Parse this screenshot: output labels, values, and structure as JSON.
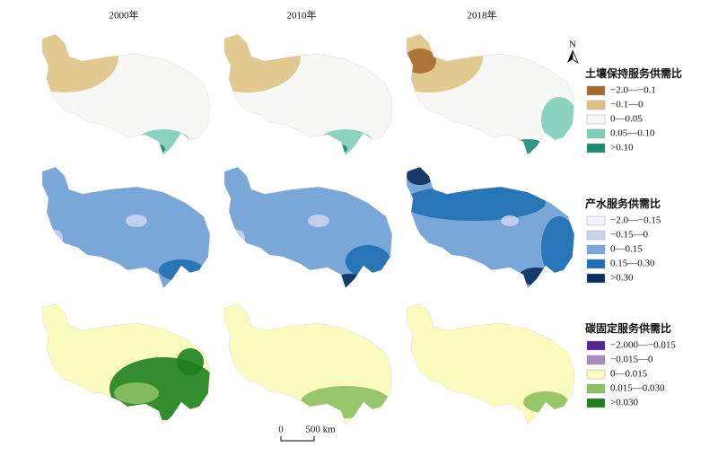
{
  "columns": [
    "2000年",
    "2010年",
    "2018年"
  ],
  "north": "N",
  "legends": [
    {
      "title": "土壤保持服务供需比",
      "items": [
        {
          "label": "−2.0—−0.1",
          "color": "#a8692f"
        },
        {
          "label": "−0.1—0",
          "color": "#dfc385"
        },
        {
          "label": "0—0.05",
          "color": "#f7f7f5"
        },
        {
          "label": "0.05—0.10",
          "color": "#7fcdbb"
        },
        {
          "label": ">0.10",
          "color": "#1a8a74"
        }
      ]
    },
    {
      "title": "产水服务供需比",
      "items": [
        {
          "label": "−2.0—−0.15",
          "color": "#f4f2fa"
        },
        {
          "label": "−0.15—0",
          "color": "#c9d3ee"
        },
        {
          "label": "0—0.15",
          "color": "#79a8d8"
        },
        {
          "label": "0.15—0.30",
          "color": "#1f6fb4"
        },
        {
          "label": ">0.30",
          "color": "#0b2f5e"
        }
      ]
    },
    {
      "title": "碳固定服务供需比",
      "items": [
        {
          "label": "−2.000—−0.015",
          "color": "#54278f"
        },
        {
          "label": "−0.015—0",
          "color": "#a98bc0"
        },
        {
          "label": "0—0.015",
          "color": "#fbfbc0"
        },
        {
          "label": "0.015—0.030",
          "color": "#8cc062"
        },
        {
          "label": ">0.030",
          "color": "#1d7f1d"
        }
      ]
    }
  ],
  "scale_bar": {
    "labels": [
      "0",
      "500 km"
    ]
  }
}
